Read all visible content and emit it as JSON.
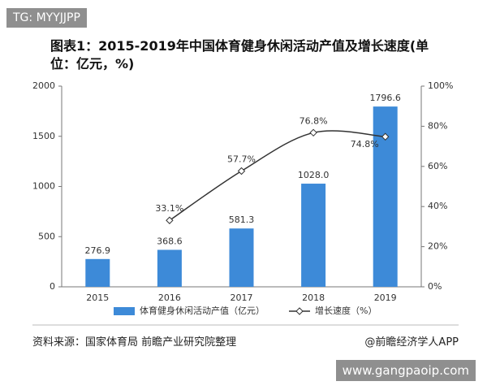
{
  "watermarks": [
    "TG: MYYJJPP",
    "www.gangpaoip.com"
  ],
  "chart_data": {
    "type": "bar",
    "title": "图表1：2015-2019年中国体育健身休闲活动产值及增长速度(单位：亿元，%)",
    "categories": [
      "2015",
      "2016",
      "2017",
      "2018",
      "2019"
    ],
    "series": [
      {
        "name": "体育健身休闲活动产值（亿元）",
        "type": "bar",
        "color": "#3d8ad8",
        "values": [
          276.9,
          368.6,
          581.3,
          1028.0,
          1796.6
        ],
        "value_labels": [
          "276.9",
          "368.6",
          "581.3",
          "1028.0",
          "1796.6"
        ]
      },
      {
        "name": "增长速度（%）",
        "type": "line",
        "axis": "y2",
        "color": "#333333",
        "values": [
          null,
          33.1,
          57.7,
          76.8,
          74.8
        ],
        "value_labels": [
          null,
          "33.1%",
          "57.7%",
          "76.8%",
          "74.8%"
        ]
      }
    ],
    "ylim": [
      0,
      2000
    ],
    "yticks": [
      0,
      500,
      1000,
      1500,
      2000
    ],
    "y2lim": [
      0,
      100
    ],
    "y2ticks": [
      {
        "value": 0,
        "label": "0%"
      },
      {
        "value": 20,
        "label": "20%"
      },
      {
        "value": 40,
        "label": "40%"
      },
      {
        "value": 60,
        "label": "60%"
      },
      {
        "value": 80,
        "label": "80%"
      },
      {
        "value": 100,
        "label": "100%"
      }
    ],
    "source": "资料来源：国家体育局 前瞻产业研究院整理",
    "credit": "@前瞻经济学人APP"
  }
}
